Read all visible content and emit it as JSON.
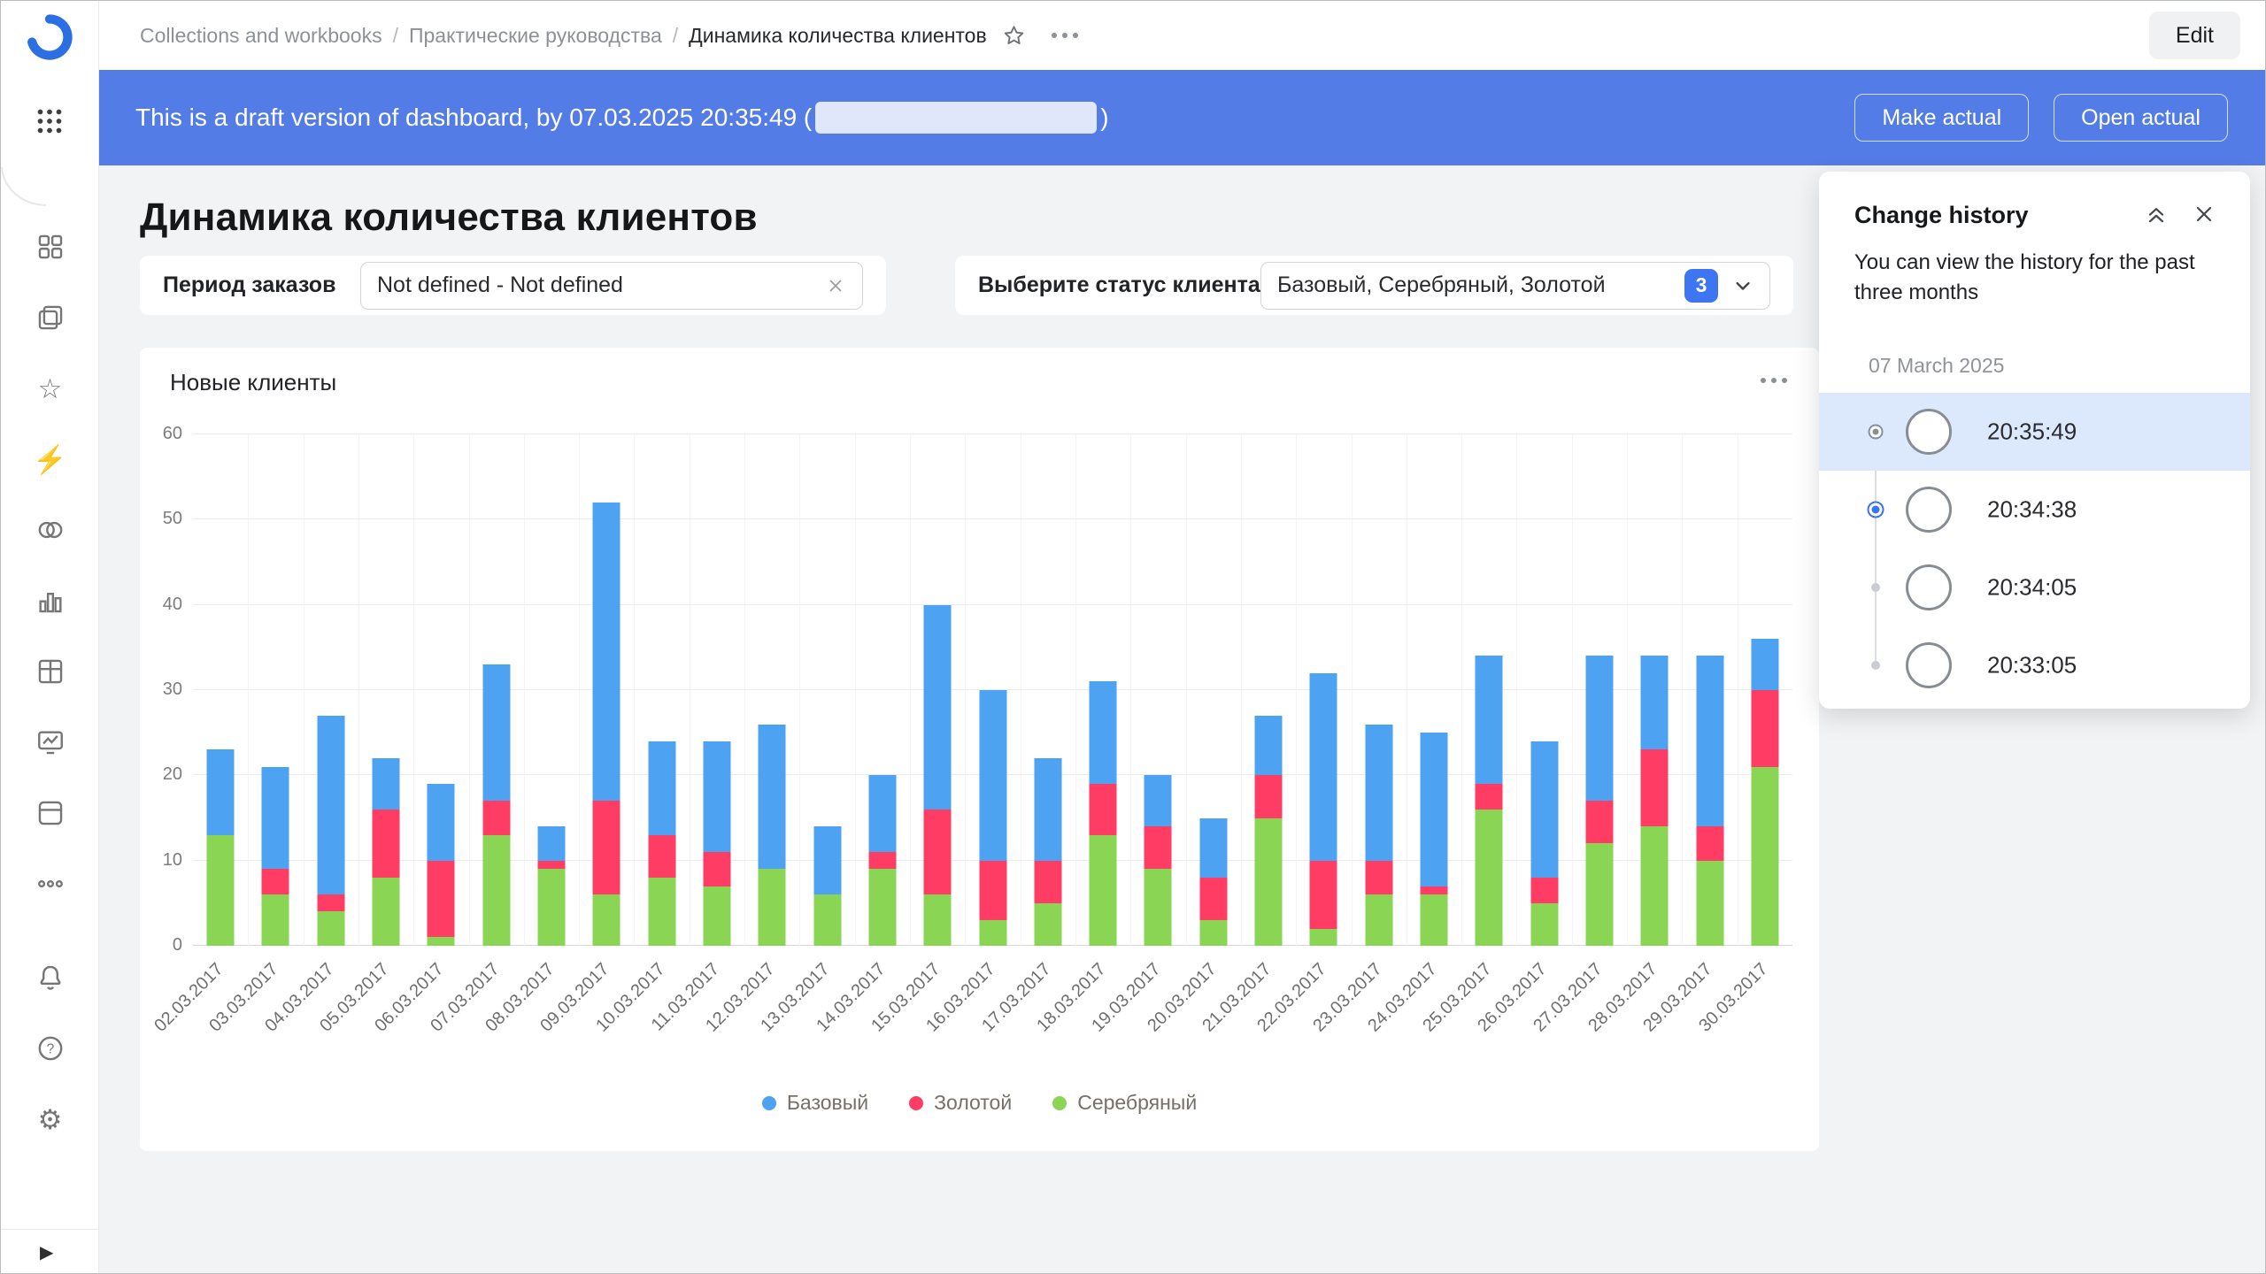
{
  "breadcrumb": {
    "items": [
      "Collections and workbooks",
      "Практические руководства",
      "Динамика количества клиентов"
    ],
    "icons": [
      "favorite-star-icon",
      "more-icon"
    ]
  },
  "topbar": {
    "edit_label": "Edit"
  },
  "banner": {
    "text_prefix": "This is a draft version of dashboard, by 07.03.2025 20:35:49 (",
    "text_suffix": ")",
    "make_actual_label": "Make actual",
    "open_actual_label": "Open actual",
    "color": "#537ce6"
  },
  "page": {
    "title": "Динамика количества клиентов"
  },
  "filters": {
    "period": {
      "label": "Период заказов",
      "value": "Not defined - Not defined",
      "clear_icon": "clear-x-icon"
    },
    "status": {
      "label": "Выберите статус клиента",
      "value": "Базовый, Серебряный, Золотой",
      "count": "3",
      "chevron_icon": "chevron-down-icon"
    }
  },
  "chart": {
    "title": "Новые клиенты",
    "menu_icon": "more-icon"
  },
  "chart_data": {
    "type": "bar",
    "stacked": true,
    "title": "Новые клиенты",
    "xlabel": "",
    "ylabel": "",
    "ylim": [
      0,
      60
    ],
    "yticks": [
      0,
      10,
      20,
      30,
      40,
      50,
      60
    ],
    "grid": true,
    "legend_position": "bottom",
    "categories": [
      "02.03.2017",
      "03.03.2017",
      "04.03.2017",
      "05.03.2017",
      "06.03.2017",
      "07.03.2017",
      "08.03.2017",
      "09.03.2017",
      "10.03.2017",
      "11.03.2017",
      "12.03.2017",
      "13.03.2017",
      "14.03.2017",
      "15.03.2017",
      "16.03.2017",
      "17.03.2017",
      "18.03.2017",
      "19.03.2017",
      "20.03.2017",
      "21.03.2017",
      "22.03.2017",
      "23.03.2017",
      "24.03.2017",
      "25.03.2017",
      "26.03.2017",
      "27.03.2017",
      "28.03.2017",
      "29.03.2017",
      "30.03.2017"
    ],
    "series": [
      {
        "name": "Серебряный",
        "color": "#8AD554",
        "values": [
          13,
          6,
          4,
          8,
          1,
          13,
          9,
          6,
          8,
          7,
          9,
          6,
          9,
          6,
          3,
          5,
          13,
          9,
          3,
          15,
          2,
          6,
          6,
          16,
          5,
          12,
          14,
          10,
          21
        ]
      },
      {
        "name": "Золотой",
        "color": "#FF3D64",
        "values": [
          0,
          3,
          2,
          8,
          9,
          4,
          1,
          11,
          5,
          4,
          0,
          0,
          2,
          10,
          7,
          5,
          6,
          5,
          5,
          5,
          8,
          4,
          1,
          3,
          3,
          5,
          9,
          4,
          9
        ]
      },
      {
        "name": "Базовый",
        "color": "#4DA2F1",
        "values": [
          10,
          12,
          21,
          6,
          9,
          16,
          4,
          35,
          11,
          13,
          17,
          8,
          9,
          24,
          20,
          12,
          12,
          6,
          7,
          7,
          22,
          16,
          18,
          15,
          16,
          17,
          11,
          20,
          6
        ]
      }
    ],
    "stacking_order_bottom_to_top": [
      "Серебряный",
      "Золотой",
      "Базовый"
    ],
    "legend_order": [
      "Базовый",
      "Золотой",
      "Серебряный"
    ]
  },
  "history": {
    "title": "Change history",
    "hint": "You can view the history for the past three months",
    "date_group": "07 March 2025",
    "icons": [
      "collapse-icon",
      "close-icon"
    ],
    "items": [
      {
        "time": "20:35:49",
        "state": "selected"
      },
      {
        "time": "20:34:38",
        "state": "current"
      },
      {
        "time": "20:34:05",
        "state": "default"
      },
      {
        "time": "20:33:05",
        "state": "default"
      }
    ]
  },
  "sidebar": {
    "icons": [
      "datalens-logo-icon",
      "apps-grid-icon",
      "squares-icon",
      "layers-icon",
      "star-icon",
      "lightning-icon",
      "venn-circles-icon",
      "bar-chart-icon",
      "table-grid-icon",
      "monitor-chart-icon",
      "box-icon",
      "more-icon",
      "bell-icon",
      "help-icon",
      "gear-icon",
      "expand-arrow-icon"
    ]
  }
}
